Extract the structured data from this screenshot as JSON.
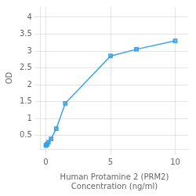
{
  "chart_data": {
    "type": "line",
    "x": [
      0,
      0.05,
      0.1,
      0.2,
      0.4,
      0.8,
      1.5,
      5,
      7,
      10
    ],
    "values": [
      0.2,
      0.22,
      0.25,
      0.3,
      0.4,
      0.7,
      1.45,
      2.85,
      3.05,
      3.3
    ],
    "xlabel": "Human Protamine 2 (PRM2)\nConcentration (ng/ml)",
    "ylabel": "OD",
    "xlim": [
      -0.4,
      11
    ],
    "ylim": [
      0.1,
      4.3
    ],
    "xticks": [
      0,
      5,
      10
    ],
    "yticks": [
      0.5,
      1,
      1.5,
      2,
      2.5,
      3,
      3.5,
      4
    ],
    "grid": true,
    "marker": "square"
  }
}
